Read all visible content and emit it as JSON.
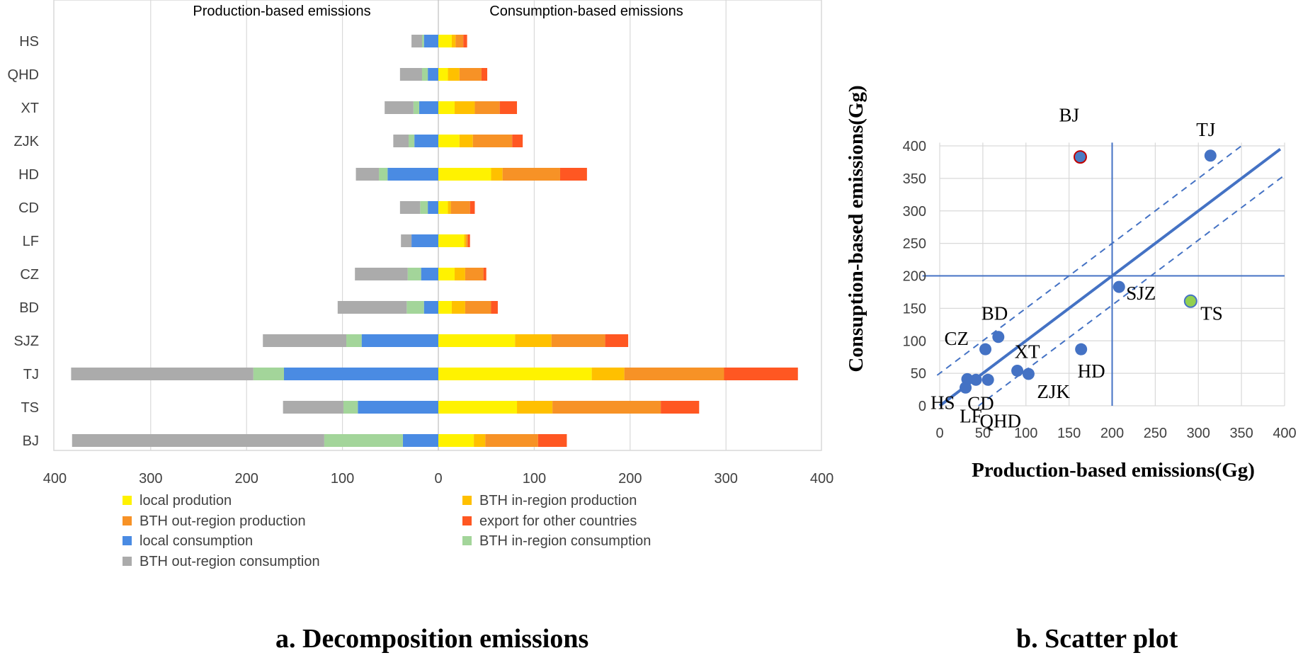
{
  "chart_data": [
    {
      "type": "bar",
      "orientation": "horizontal-stacked-diverging",
      "panel_caption": "a. Decomposition emissions",
      "left_header": "Production-based emissions",
      "right_header": "Consumption-based emissions",
      "categories": [
        "HS",
        "QHD",
        "XT",
        "ZJK",
        "HD",
        "CD",
        "LF",
        "CZ",
        "BD",
        "SJZ",
        "TJ",
        "TS",
        "BJ"
      ],
      "xlim": [
        -400,
        400
      ],
      "x_ticks": [
        "400",
        "300",
        "200",
        "100",
        "0",
        "100",
        "200",
        "300",
        "400"
      ],
      "grid": true,
      "legend_placement": "bottom",
      "series": [
        {
          "name": "local prodution",
          "side": "consumption",
          "color": "#FFF200",
          "values": [
            14,
            10,
            17,
            22,
            55,
            10,
            27,
            17,
            14,
            80,
            160,
            82,
            37
          ]
        },
        {
          "name": "BTH in-region production",
          "side": "consumption",
          "color": "#FFC000",
          "values": [
            4,
            12,
            21,
            14,
            12,
            3,
            2,
            11,
            14,
            38,
            34,
            37,
            12
          ]
        },
        {
          "name": "BTH out-region production",
          "side": "consumption",
          "color": "#F79226",
          "values": [
            8,
            23,
            26,
            41,
            60,
            20,
            2,
            19,
            27,
            56,
            104,
            113,
            55
          ]
        },
        {
          "name": " export for other countries",
          "side": "consumption",
          "color": "#FF5722",
          "values": [
            4,
            6,
            18,
            11,
            28,
            5,
            2,
            3,
            7,
            24,
            77,
            40,
            30
          ]
        },
        {
          "name": "local consumption",
          "side": "production",
          "color": "#4A8BE3",
          "values": [
            15,
            11,
            20,
            25,
            53,
            11,
            28,
            18,
            15,
            80,
            161,
            84,
            37
          ]
        },
        {
          "name": "BTH in-region consumption",
          "side": "production",
          "color": "#A3D59A",
          "values": [
            2,
            6,
            6,
            6,
            9,
            8,
            0,
            14,
            18,
            16,
            32,
            15,
            82
          ]
        },
        {
          "name": "BTH out-region consumption",
          "side": "production",
          "color": "#ABABAB",
          "values": [
            11,
            23,
            30,
            16,
            24,
            21,
            11,
            55,
            72,
            87,
            190,
            63,
            263
          ]
        }
      ]
    },
    {
      "type": "scatter",
      "panel_caption": "b. Scatter plot",
      "xlabel": "Production-based emissions(Gg)",
      "ylabel": "Consuption-based emissions(Gg)",
      "xlim": [
        0,
        400
      ],
      "ylim": [
        0,
        400
      ],
      "x_ticks": [
        "0",
        "50",
        "100",
        "150",
        "200",
        "250",
        "300",
        "350",
        "400"
      ],
      "y_ticks": [
        "0",
        "50",
        "100",
        "150",
        "200",
        "250",
        "300",
        "350",
        "400"
      ],
      "grid": true,
      "reference_lines": {
        "diagonal": true,
        "dashed_offset": 50,
        "cross_x": 200,
        "cross_y": 200
      },
      "points": [
        {
          "label": "BJ",
          "x": 163,
          "y": 383,
          "color": "#4A7CC4",
          "outline": "#C00000"
        },
        {
          "label": "TJ",
          "x": 314,
          "y": 385,
          "color": "#4472C4"
        },
        {
          "label": "SJZ",
          "x": 208,
          "y": 183,
          "color": "#4472C4"
        },
        {
          "label": "TS",
          "x": 291,
          "y": 161,
          "color": "#92D050",
          "outline": "#4472C4"
        },
        {
          "label": "BD",
          "x": 68,
          "y": 106,
          "color": "#4472C4"
        },
        {
          "label": "CZ",
          "x": 53,
          "y": 87,
          "color": "#4472C4"
        },
        {
          "label": "HD",
          "x": 164,
          "y": 87,
          "color": "#4472C4"
        },
        {
          "label": "XT",
          "x": 90,
          "y": 54,
          "color": "#4472C4"
        },
        {
          "label": "ZJK",
          "x": 103,
          "y": 49,
          "color": "#4472C4"
        },
        {
          "label": "HS",
          "x": 32,
          "y": 41,
          "color": "#4472C4"
        },
        {
          "label": "CD",
          "x": 42,
          "y": 40,
          "color": "#4472C4"
        },
        {
          "label": "LF",
          "x": 56,
          "y": 40,
          "color": "#4472C4"
        },
        {
          "label": "QHD",
          "x": 30,
          "y": 28,
          "color": "#4472C4"
        }
      ]
    }
  ]
}
